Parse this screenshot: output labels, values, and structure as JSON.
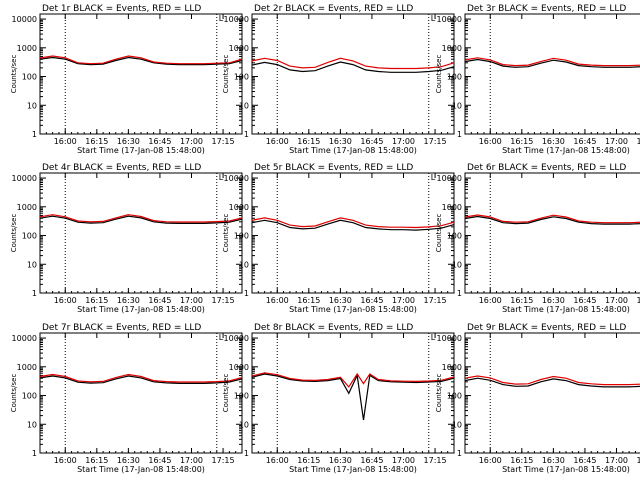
{
  "colors": {
    "events": "#000000",
    "lld": "#e00000",
    "axis": "#000000",
    "marker": "#000000"
  },
  "shared": {
    "xlabel": "Start Time (17-Jan-08 15:48:00)",
    "ylabel": "Counts/sec",
    "y_ticks": [
      "1",
      "10",
      "100",
      "1000",
      "10000"
    ],
    "x_ticks": [
      "16:00",
      "16:15",
      "16:30",
      "16:45",
      "17:00",
      "17:15"
    ],
    "flag": "L"
  },
  "chart_data": [
    {
      "type": "line",
      "title": "Det 1r BLACK = Events, RED = LLD",
      "xlabel": "Start Time (17-Jan-08 15:48:00)",
      "ylabel": "Counts/sec",
      "y_scale": "log",
      "ylim": [
        1,
        15000
      ],
      "xlim_minutes_after_15_48": [
        0,
        96
      ],
      "x_ticks": [
        "16:00",
        "16:15",
        "16:30",
        "16:45",
        "17:00",
        "17:15"
      ],
      "vlines": [
        "16:00",
        "17:12"
      ],
      "x": [
        0,
        6,
        12,
        18,
        24,
        30,
        36,
        42,
        48,
        54,
        60,
        66,
        72,
        78,
        84,
        90,
        96
      ],
      "series": [
        {
          "name": "Events",
          "values": [
            400,
            460,
            400,
            280,
            260,
            270,
            360,
            460,
            400,
            300,
            270,
            260,
            260,
            260,
            270,
            280,
            360
          ]
        },
        {
          "name": "LLD",
          "values": [
            440,
            520,
            450,
            300,
            280,
            290,
            400,
            520,
            450,
            320,
            290,
            280,
            280,
            280,
            290,
            300,
            400
          ]
        }
      ]
    },
    {
      "type": "line",
      "title": "Det 2r BLACK = Events, RED = LLD",
      "xlabel": "Start Time (17-Jan-08 15:48:00)",
      "ylabel": "Counts/sec",
      "y_scale": "log",
      "ylim": [
        1,
        15000
      ],
      "xlim_minutes_after_15_48": [
        0,
        96
      ],
      "x_ticks": [
        "16:00",
        "16:15",
        "16:30",
        "16:45",
        "17:00",
        "17:15"
      ],
      "vlines": [
        "16:00",
        "17:12"
      ],
      "x": [
        0,
        6,
        12,
        18,
        24,
        30,
        36,
        42,
        48,
        54,
        60,
        66,
        72,
        78,
        84,
        90,
        96
      ],
      "series": [
        {
          "name": "Events",
          "values": [
            250,
            310,
            260,
            170,
            150,
            160,
            230,
            320,
            260,
            170,
            150,
            140,
            140,
            140,
            150,
            165,
            220
          ]
        },
        {
          "name": "LLD",
          "values": [
            350,
            430,
            360,
            230,
            200,
            210,
            310,
            430,
            350,
            230,
            200,
            190,
            190,
            190,
            200,
            220,
            300
          ]
        }
      ]
    },
    {
      "type": "line",
      "title": "Det 3r BLACK = Events, RED = LLD",
      "xlabel": "Start Time (17-Jan-08 15:48:00)",
      "ylabel": "Counts/sec",
      "y_scale": "log",
      "ylim": [
        1,
        15000
      ],
      "xlim_minutes_after_15_48": [
        0,
        96
      ],
      "x_ticks": [
        "16:00",
        "16:15",
        "16:30",
        "16:45",
        "17:00",
        "17:15"
      ],
      "vlines": [
        "16:00",
        "17:12"
      ],
      "x": [
        0,
        6,
        12,
        18,
        24,
        30,
        36,
        42,
        48,
        54,
        60,
        66,
        72,
        78,
        84,
        90,
        96
      ],
      "series": [
        {
          "name": "Events",
          "values": [
            330,
            390,
            330,
            230,
            210,
            220,
            290,
            370,
            320,
            240,
            220,
            210,
            210,
            210,
            220,
            235,
            300
          ]
        },
        {
          "name": "LLD",
          "values": [
            380,
            450,
            380,
            260,
            240,
            250,
            330,
            430,
            370,
            270,
            250,
            240,
            240,
            240,
            250,
            265,
            340
          ]
        }
      ]
    },
    {
      "type": "line",
      "title": "Det 4r BLACK = Events, RED = LLD",
      "xlabel": "Start Time (17-Jan-08 15:48:00)",
      "ylabel": "Counts/sec",
      "y_scale": "log",
      "ylim": [
        1,
        15000
      ],
      "xlim_minutes_after_15_48": [
        0,
        96
      ],
      "x_ticks": [
        "16:00",
        "16:15",
        "16:30",
        "16:45",
        "17:00",
        "17:15"
      ],
      "vlines": [
        "16:00",
        "17:12"
      ],
      "x": [
        0,
        6,
        12,
        18,
        24,
        30,
        36,
        42,
        48,
        54,
        60,
        66,
        72,
        78,
        84,
        90,
        96
      ],
      "series": [
        {
          "name": "Events",
          "values": [
            400,
            470,
            400,
            290,
            270,
            280,
            370,
            470,
            410,
            300,
            270,
            265,
            265,
            265,
            275,
            290,
            370
          ]
        },
        {
          "name": "LLD",
          "values": [
            450,
            530,
            450,
            320,
            300,
            310,
            410,
            530,
            460,
            330,
            300,
            295,
            295,
            295,
            305,
            320,
            410
          ]
        }
      ]
    },
    {
      "type": "line",
      "title": "Det 5r BLACK = Events, RED = LLD",
      "xlabel": "Start Time (17-Jan-08 15:48:00)",
      "ylabel": "Counts/sec",
      "y_scale": "log",
      "ylim": [
        1,
        15000
      ],
      "xlim_minutes_after_15_48": [
        0,
        96
      ],
      "x_ticks": [
        "16:00",
        "16:15",
        "16:30",
        "16:45",
        "17:00",
        "17:15"
      ],
      "vlines": [
        "16:00",
        "17:12"
      ],
      "x": [
        0,
        6,
        12,
        18,
        24,
        30,
        36,
        42,
        48,
        54,
        60,
        66,
        72,
        78,
        84,
        90,
        96
      ],
      "series": [
        {
          "name": "Events",
          "values": [
            280,
            340,
            280,
            190,
            170,
            180,
            250,
            340,
            280,
            190,
            170,
            160,
            160,
            155,
            165,
            180,
            240
          ]
        },
        {
          "name": "LLD",
          "values": [
            340,
            410,
            340,
            230,
            205,
            215,
            300,
            410,
            340,
            230,
            205,
            195,
            195,
            190,
            200,
            220,
            290
          ]
        }
      ]
    },
    {
      "type": "line",
      "title": "Det 6r BLACK = Events, RED = LLD",
      "xlabel": "Start Time (17-Jan-08 15:48:00)",
      "ylabel": "Counts/sec",
      "y_scale": "log",
      "ylim": [
        1,
        15000
      ],
      "xlim_minutes_after_15_48": [
        0,
        96
      ],
      "x_ticks": [
        "16:00",
        "16:15",
        "16:30",
        "16:45",
        "17:00",
        "17:15"
      ],
      "vlines": [
        "16:00",
        "17:12"
      ],
      "x": [
        0,
        6,
        12,
        18,
        24,
        30,
        36,
        42,
        48,
        54,
        60,
        66,
        72,
        78,
        84,
        90,
        96
      ],
      "series": [
        {
          "name": "Events",
          "values": [
            390,
            460,
            390,
            280,
            260,
            270,
            360,
            450,
            390,
            290,
            260,
            250,
            250,
            250,
            260,
            280,
            350
          ]
        },
        {
          "name": "LLD",
          "values": [
            440,
            520,
            440,
            310,
            290,
            300,
            400,
            510,
            440,
            320,
            290,
            280,
            280,
            280,
            290,
            310,
            390
          ]
        }
      ]
    },
    {
      "type": "line",
      "title": "Det 7r BLACK = Events, RED = LLD",
      "xlabel": "Start Time (17-Jan-08 15:48:00)",
      "ylabel": "Counts/sec",
      "y_scale": "log",
      "ylim": [
        1,
        15000
      ],
      "xlim_minutes_after_15_48": [
        0,
        96
      ],
      "x_ticks": [
        "16:00",
        "16:15",
        "16:30",
        "16:45",
        "17:00",
        "17:15"
      ],
      "vlines": [
        "16:00",
        "17:12"
      ],
      "x": [
        0,
        6,
        12,
        18,
        24,
        30,
        36,
        42,
        48,
        54,
        60,
        66,
        72,
        78,
        84,
        90,
        96
      ],
      "series": [
        {
          "name": "Events",
          "values": [
            410,
            480,
            410,
            290,
            270,
            280,
            380,
            480,
            410,
            300,
            275,
            265,
            265,
            265,
            275,
            295,
            380
          ]
        },
        {
          "name": "LLD",
          "values": [
            460,
            540,
            460,
            320,
            300,
            310,
            420,
            540,
            460,
            330,
            305,
            295,
            295,
            295,
            305,
            325,
            420
          ]
        }
      ]
    },
    {
      "type": "line",
      "title": "Det 8r BLACK = Events, RED = LLD",
      "xlabel": "Start Time (17-Jan-08 15:48:00)",
      "ylabel": "Counts/sec",
      "y_scale": "log",
      "ylim": [
        1,
        15000
      ],
      "xlim_minutes_after_15_48": [
        0,
        96
      ],
      "x_ticks": [
        "16:00",
        "16:15",
        "16:30",
        "16:45",
        "17:00",
        "17:15"
      ],
      "vlines": [
        "16:00",
        "17:12"
      ],
      "x": [
        0,
        6,
        12,
        18,
        24,
        30,
        36,
        42,
        46,
        50,
        53,
        56,
        60,
        66,
        72,
        78,
        84,
        90,
        96
      ],
      "series": [
        {
          "name": "Events",
          "values": [
            430,
            560,
            480,
            360,
            320,
            310,
            330,
            390,
            120,
            500,
            14,
            500,
            330,
            300,
            290,
            285,
            295,
            310,
            400
          ]
        },
        {
          "name": "LLD",
          "values": [
            480,
            620,
            530,
            390,
            345,
            335,
            360,
            430,
            200,
            560,
            260,
            560,
            360,
            325,
            315,
            310,
            320,
            340,
            440
          ]
        }
      ]
    },
    {
      "type": "line",
      "title": "Det 9r BLACK = Events, RED = LLD",
      "xlabel": "Start Time (17-Jan-08 15:48:00)",
      "ylabel": "Counts/sec",
      "y_scale": "log",
      "ylim": [
        1,
        15000
      ],
      "xlim_minutes_after_15_48": [
        0,
        96
      ],
      "x_ticks": [
        "16:00",
        "16:15",
        "16:30",
        "16:45",
        "17:00",
        "17:15"
      ],
      "vlines": [
        "16:00",
        "17:12"
      ],
      "x": [
        0,
        6,
        12,
        18,
        24,
        30,
        36,
        42,
        48,
        54,
        60,
        66,
        72,
        78,
        84,
        90,
        96
      ],
      "series": [
        {
          "name": "Events",
          "values": [
            330,
            400,
            340,
            240,
            210,
            215,
            300,
            380,
            330,
            240,
            215,
            200,
            200,
            200,
            210,
            225,
            300
          ]
        },
        {
          "name": "LLD",
          "values": [
            400,
            480,
            410,
            285,
            250,
            255,
            360,
            460,
            400,
            285,
            255,
            240,
            240,
            240,
            250,
            270,
            360
          ]
        }
      ]
    }
  ]
}
